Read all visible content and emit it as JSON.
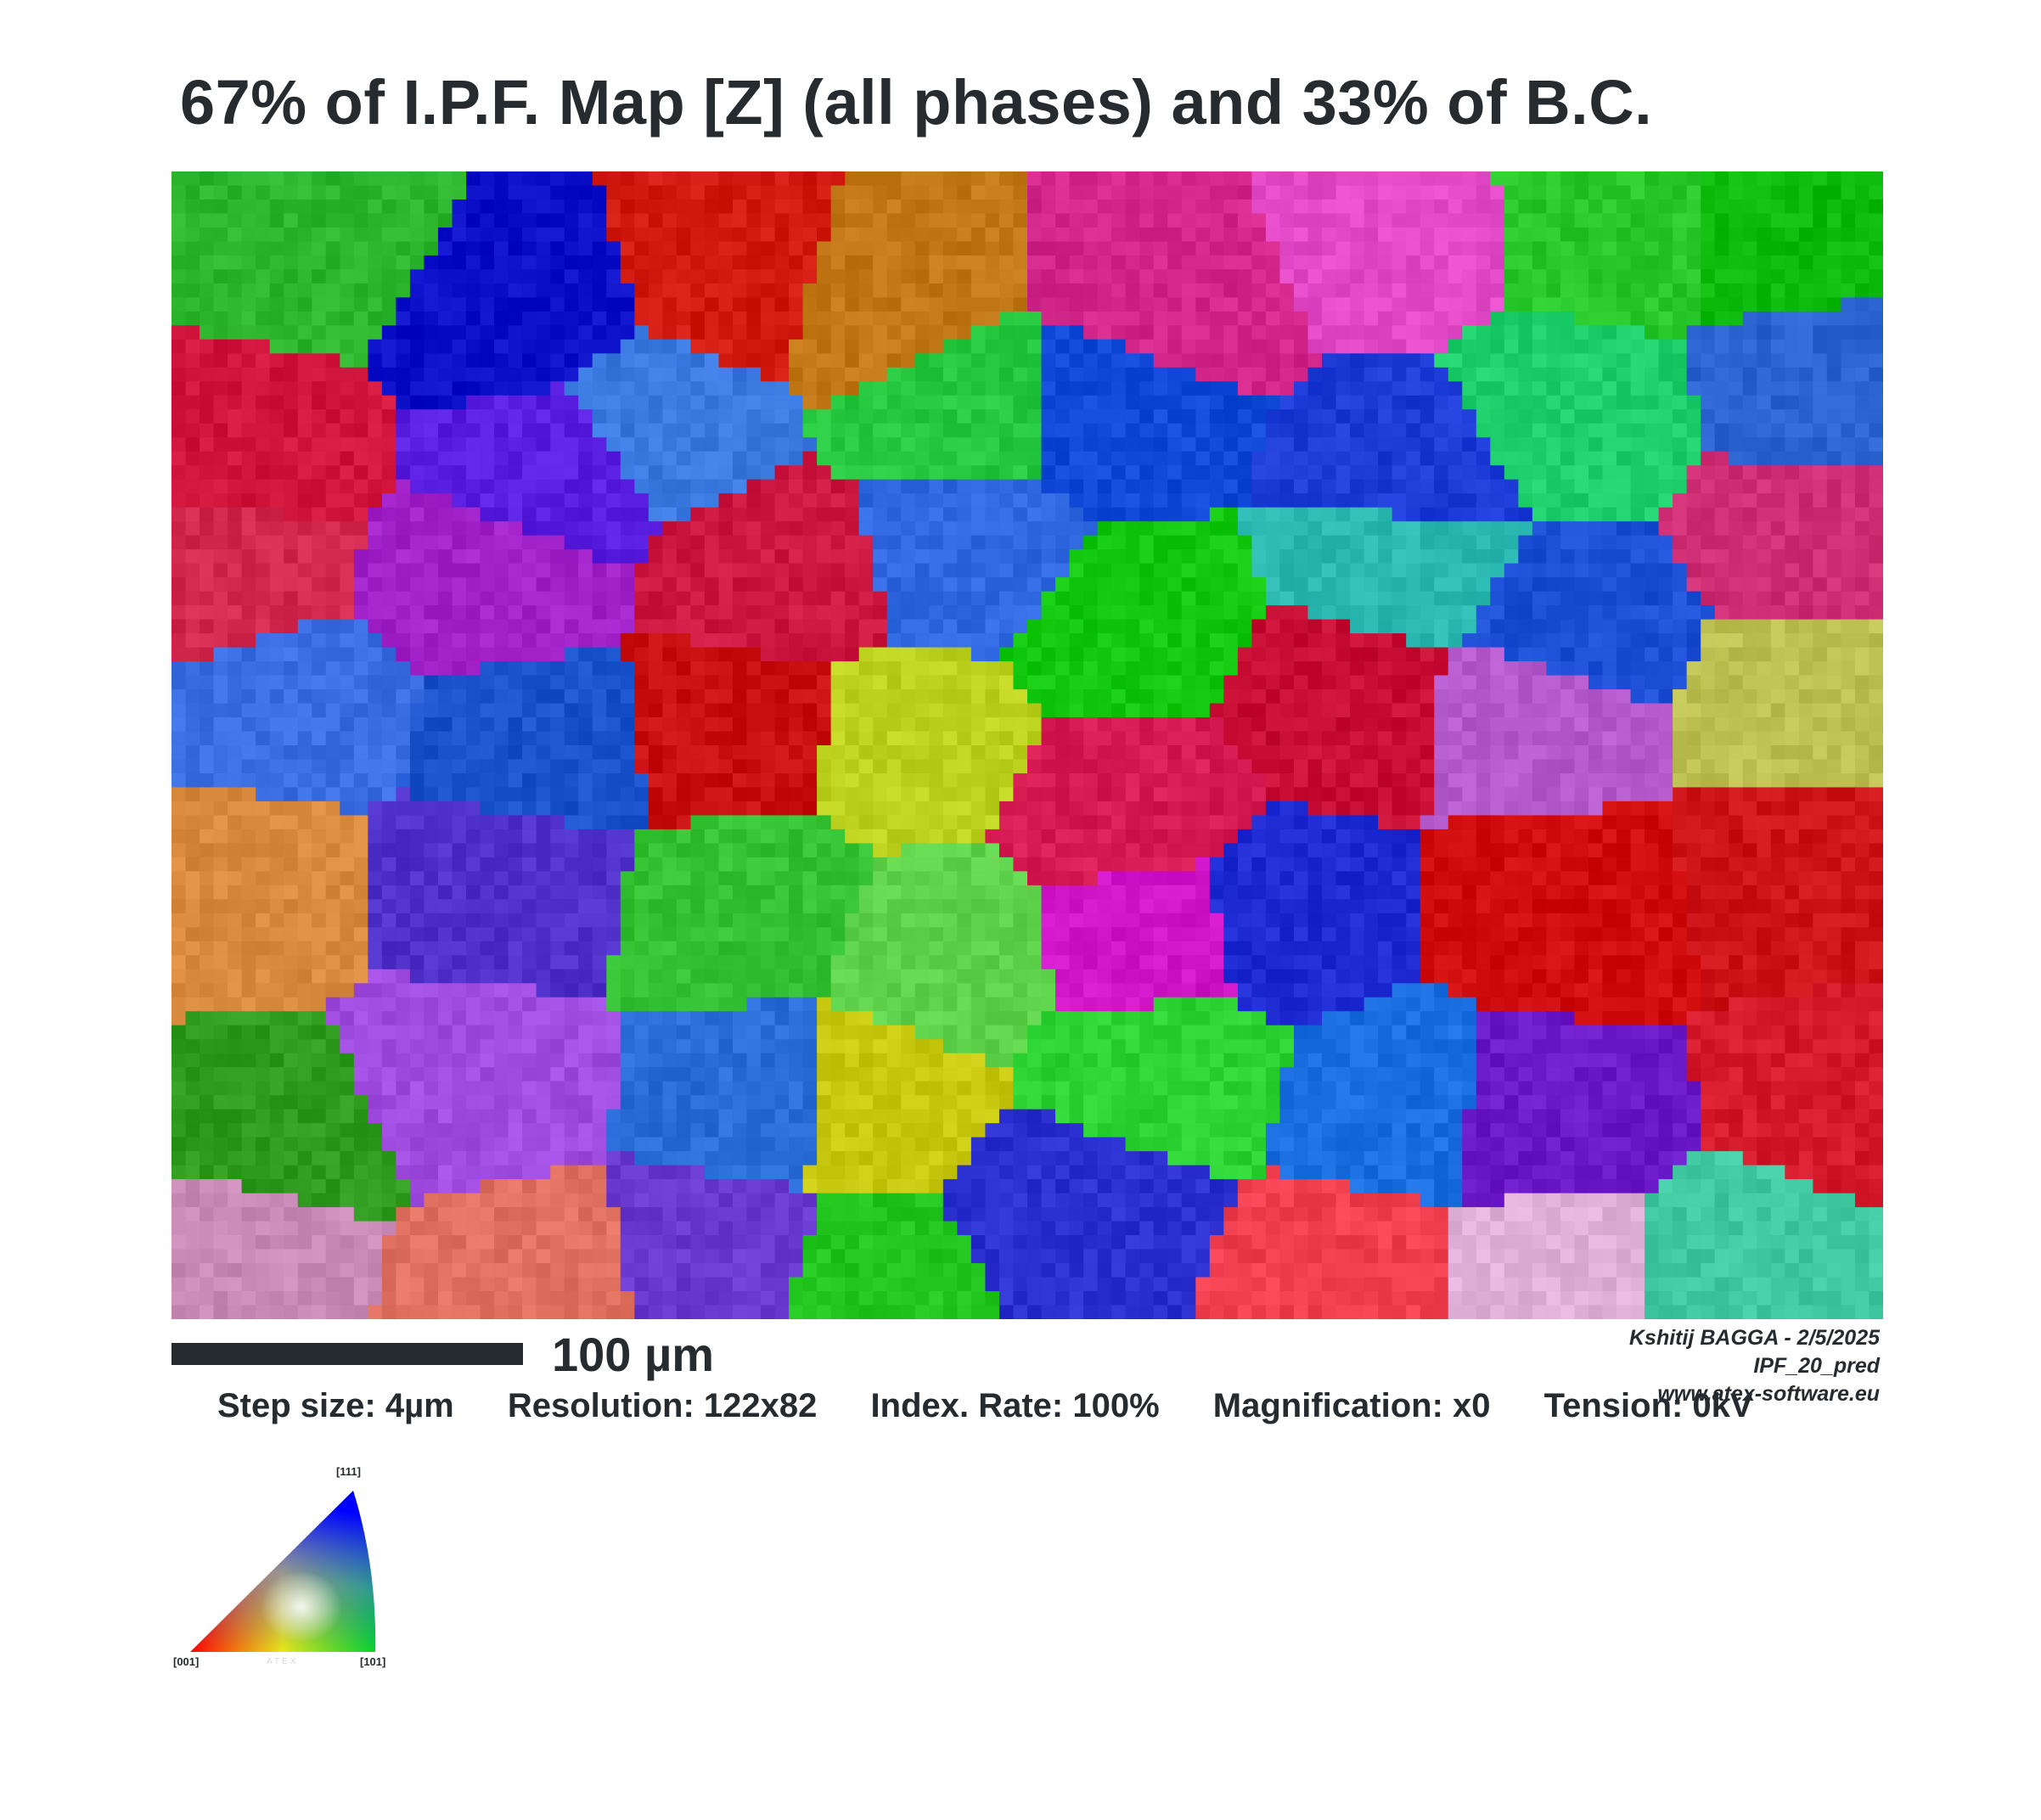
{
  "title": "67% of I.P.F. Map [Z] (all phases) and 33% of B.C.",
  "scale_bar": {
    "label": "100 µm"
  },
  "credits": {
    "author_date": "Kshitij BAGGA - 2/5/2025",
    "dataset": "IPF_20_pred",
    "website": "www.atex-software.eu"
  },
  "info": {
    "step_size": "Step size: 4µm",
    "resolution": "Resolution: 122x82",
    "index_rate": "Index. Rate: 100%",
    "magnification": "Magnification: x0",
    "tension": "Tension: 0kV"
  },
  "legend": {
    "corner_111": "[111]",
    "corner_001": "[001]",
    "corner_101": "[101]",
    "logo": "ATEX"
  },
  "ipf_colors": {
    "red_001": "#ff0000",
    "green_101": "#00ff00",
    "blue_111": "#0000ff"
  },
  "map_grains": [
    {
      "color": "#2db52d"
    },
    {
      "color": "#0b10c8"
    },
    {
      "color": "#d11a10"
    },
    {
      "color": "#c37818"
    },
    {
      "color": "#d2268a"
    },
    {
      "color": "#e24ac8"
    },
    {
      "color": "#28c82a"
    },
    {
      "color": "#0cba0c"
    },
    {
      "color": "#d0143c"
    },
    {
      "color": "#5a1ee0"
    },
    {
      "color": "#3a7ae0"
    },
    {
      "color": "#26c840"
    },
    {
      "color": "#1048d8"
    },
    {
      "color": "#1c3ad6"
    },
    {
      "color": "#1ccf6a"
    },
    {
      "color": "#2a62d0"
    },
    {
      "color": "#d2284e"
    },
    {
      "color": "#a022c8"
    },
    {
      "color": "#cc1840"
    },
    {
      "color": "#2f68e0"
    },
    {
      "color": "#12c80e"
    },
    {
      "color": "#2ab8b0"
    },
    {
      "color": "#1c4ed6"
    },
    {
      "color": "#cf2d74"
    },
    {
      "color": "#3b6ee2"
    },
    {
      "color": "#1a52cc"
    },
    {
      "color": "#c81010"
    },
    {
      "color": "#bcd21e"
    },
    {
      "color": "#d61a52"
    },
    {
      "color": "#c80e34"
    },
    {
      "color": "#b45acc"
    },
    {
      "color": "#bcc050"
    },
    {
      "color": "#d98a3e"
    },
    {
      "color": "#4f30c8"
    },
    {
      "color": "#34c232"
    },
    {
      "color": "#5dd24a"
    },
    {
      "color": "#d014c8"
    },
    {
      "color": "#1e2ad2"
    },
    {
      "color": "#d10c0c"
    },
    {
      "color": "#cc1418"
    },
    {
      "color": "#2e9a1e"
    },
    {
      "color": "#a04ce0"
    },
    {
      "color": "#2a6cd8"
    },
    {
      "color": "#c8c810"
    },
    {
      "color": "#2cd232"
    },
    {
      "color": "#1a6ee0"
    },
    {
      "color": "#6a18c8"
    },
    {
      "color": "#d41a2a"
    },
    {
      "color": "#ca8ab8"
    },
    {
      "color": "#e07060"
    },
    {
      "color": "#6a3ad0"
    },
    {
      "color": "#23c61e"
    },
    {
      "color": "#2b2fd0"
    },
    {
      "color": "#f04050"
    },
    {
      "color": "#e0b0d8"
    },
    {
      "color": "#40c8a0"
    }
  ]
}
